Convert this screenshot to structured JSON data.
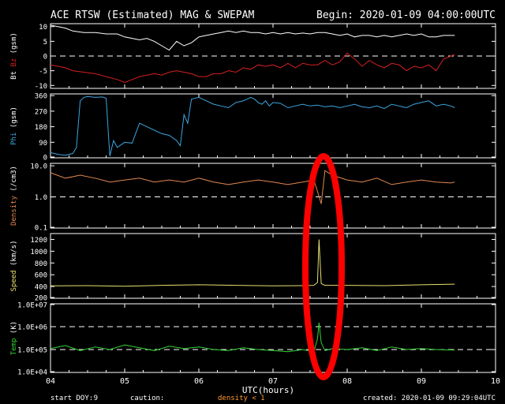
{
  "header": {
    "title": "ACE RTSW (Estimated) MAG & SWEPAM",
    "begin": "Begin: 2020-01-09 04:00:00UTC"
  },
  "footer": {
    "start_doy_label": "start DOY:",
    "start_doy_value": "9",
    "caution_label": "caution:",
    "caution_value": "density < 1",
    "created": "created: 2020-01-09 09:29:04UTC"
  },
  "colors": {
    "background": "#000000",
    "frame": "#ffffff",
    "bt": "#ffffff",
    "bz": "#d42020",
    "phi": "#3aa6e0",
    "density": "#e08850",
    "speed": "#e6e070",
    "temp": "#33d433",
    "temp_spike": "#b0ff80",
    "highlight": "#ff0000",
    "caution_text": "#ff9933"
  },
  "chart_data": [
    {
      "type": "line",
      "panel": "mag",
      "ylabel_parts": [
        {
          "text": "Bt",
          "color": "#ffffff"
        },
        {
          "text": "Bz",
          "color": "#d42020"
        },
        {
          "text": "(gsm)",
          "color": "#ffffff"
        }
      ],
      "ylim": [
        -11,
        11
      ],
      "yticks": [
        10,
        5,
        0,
        -5,
        -10
      ],
      "ytick_labels": [
        "10",
        "5",
        "0",
        "-5",
        "-10"
      ],
      "dashed_refs": [
        0
      ],
      "x_range": [
        4,
        9.45
      ],
      "series": [
        {
          "name": "Bt",
          "color": "#ffffff",
          "x": [
            4.0,
            4.1,
            4.2,
            4.3,
            4.45,
            4.6,
            4.75,
            4.9,
            5.0,
            5.1,
            5.2,
            5.3,
            5.4,
            5.5,
            5.6,
            5.7,
            5.8,
            5.9,
            6.0,
            6.1,
            6.2,
            6.3,
            6.4,
            6.5,
            6.6,
            6.7,
            6.8,
            6.9,
            7.0,
            7.1,
            7.2,
            7.3,
            7.4,
            7.5,
            7.6,
            7.7,
            7.8,
            7.9,
            8.0,
            8.1,
            8.2,
            8.3,
            8.4,
            8.5,
            8.6,
            8.7,
            8.8,
            8.9,
            9.0,
            9.1,
            9.2,
            9.3,
            9.4,
            9.45
          ],
          "values": [
            10.5,
            10,
            9.5,
            8.5,
            8,
            8,
            7.5,
            7.5,
            6.5,
            6,
            5.5,
            6,
            5,
            3.5,
            2,
            5,
            3.5,
            4.5,
            6.5,
            7,
            7.5,
            8,
            8.5,
            8,
            8.5,
            8,
            8,
            7.5,
            8,
            7.5,
            8,
            7.5,
            7.8,
            7.5,
            8,
            8,
            7.5,
            7,
            7.5,
            6.5,
            7,
            7,
            6.5,
            7,
            6.5,
            7,
            7.5,
            7,
            7.5,
            6.5,
            6.5,
            7,
            7,
            7
          ]
        },
        {
          "name": "Bz",
          "color": "#d42020",
          "x": [
            4.0,
            4.1,
            4.2,
            4.3,
            4.45,
            4.6,
            4.75,
            4.9,
            5.0,
            5.1,
            5.2,
            5.3,
            5.4,
            5.5,
            5.6,
            5.7,
            5.8,
            5.9,
            6.0,
            6.1,
            6.2,
            6.3,
            6.4,
            6.5,
            6.6,
            6.7,
            6.8,
            6.9,
            7.0,
            7.1,
            7.2,
            7.3,
            7.4,
            7.5,
            7.6,
            7.7,
            7.8,
            7.9,
            8.0,
            8.1,
            8.2,
            8.3,
            8.4,
            8.5,
            8.6,
            8.7,
            8.8,
            8.9,
            9.0,
            9.1,
            9.2,
            9.3,
            9.4,
            9.45
          ],
          "values": [
            -3,
            -3.5,
            -4,
            -5,
            -5.5,
            -6,
            -7,
            -8,
            -9,
            -8,
            -7,
            -6.5,
            -6,
            -6.5,
            -5.5,
            -5,
            -5.5,
            -6,
            -7,
            -7,
            -6,
            -6,
            -5,
            -5.5,
            -4,
            -4.5,
            -3,
            -3.5,
            -3,
            -4,
            -2.5,
            -4,
            -2.5,
            -3,
            -3,
            -1.5,
            -3,
            -2,
            1,
            -1,
            -3.5,
            -1.5,
            -3,
            -4,
            -2.5,
            -3,
            -5,
            -3.5,
            -4,
            -3,
            -5,
            -1,
            0,
            0.5
          ]
        }
      ]
    },
    {
      "type": "line",
      "panel": "phi",
      "ylabel_parts": [
        {
          "text": "Phi",
          "color": "#3aa6e0"
        },
        {
          "text": "(gsm)",
          "color": "#ffffff"
        }
      ],
      "ylim": [
        0,
        370
      ],
      "yticks": [
        360,
        270,
        180,
        90,
        0
      ],
      "ytick_labels": [
        "360",
        "270",
        "180",
        "90",
        "0"
      ],
      "x_range": [
        4,
        9.45
      ],
      "series": [
        {
          "name": "Phi",
          "color": "#3aa6e0",
          "x": [
            4.0,
            4.1,
            4.2,
            4.3,
            4.35,
            4.4,
            4.45,
            4.5,
            4.6,
            4.7,
            4.75,
            4.8,
            4.85,
            4.9,
            5.0,
            5.1,
            5.2,
            5.3,
            5.4,
            5.5,
            5.6,
            5.7,
            5.75,
            5.8,
            5.85,
            5.9,
            6.0,
            6.1,
            6.2,
            6.3,
            6.4,
            6.5,
            6.6,
            6.7,
            6.75,
            6.8,
            6.85,
            6.9,
            6.95,
            7.0,
            7.1,
            7.2,
            7.3,
            7.4,
            7.5,
            7.6,
            7.7,
            7.8,
            7.9,
            8.0,
            8.1,
            8.2,
            8.3,
            8.4,
            8.5,
            8.6,
            8.7,
            8.8,
            8.9,
            9.0,
            9.1,
            9.2,
            9.3,
            9.4,
            9.45
          ],
          "values": [
            30,
            20,
            15,
            25,
            60,
            330,
            350,
            355,
            350,
            352,
            345,
            10,
            100,
            60,
            90,
            85,
            200,
            180,
            160,
            140,
            130,
            100,
            70,
            250,
            200,
            340,
            350,
            330,
            310,
            300,
            290,
            320,
            330,
            350,
            340,
            320,
            310,
            330,
            300,
            320,
            315,
            290,
            300,
            310,
            300,
            305,
            295,
            300,
            290,
            300,
            310,
            295,
            290,
            300,
            285,
            310,
            300,
            290,
            310,
            320,
            330,
            300,
            310,
            300,
            290
          ]
        }
      ]
    },
    {
      "type": "line",
      "panel": "density",
      "ylabel_parts": [
        {
          "text": "Density",
          "color": "#e08850"
        },
        {
          "text": "(/cm3)",
          "color": "#ffffff"
        }
      ],
      "yscale": "log",
      "ylim": [
        0.1,
        12
      ],
      "yticks": [
        10.0,
        1.0,
        0.1
      ],
      "ytick_labels": [
        "10.0",
        "1.0",
        "0.1"
      ],
      "dashed_refs": [
        1.0
      ],
      "x_range": [
        4,
        9.45
      ],
      "series": [
        {
          "name": "Density",
          "color": "#e08850",
          "x": [
            4.0,
            4.2,
            4.4,
            4.6,
            4.8,
            5.0,
            5.2,
            5.4,
            5.6,
            5.8,
            6.0,
            6.2,
            6.4,
            6.6,
            6.8,
            7.0,
            7.2,
            7.4,
            7.55,
            7.6,
            7.65,
            7.7,
            7.8,
            8.0,
            8.2,
            8.4,
            8.6,
            8.8,
            9.0,
            9.2,
            9.4,
            9.45
          ],
          "values": [
            6,
            4,
            5,
            4,
            3,
            3.5,
            4,
            3,
            3.5,
            3,
            4,
            3,
            2.5,
            3,
            3.5,
            3,
            2.5,
            3,
            3.5,
            1.5,
            0.6,
            7,
            5,
            3.5,
            3,
            4,
            2.5,
            3,
            3.5,
            3,
            2.8,
            3
          ]
        }
      ]
    },
    {
      "type": "line",
      "panel": "speed",
      "ylabel_parts": [
        {
          "text": "Speed",
          "color": "#e6e070"
        },
        {
          "text": "(km/s)",
          "color": "#ffffff"
        }
      ],
      "ylim": [
        200,
        1300
      ],
      "yticks": [
        1200,
        1000,
        800,
        600,
        400,
        200
      ],
      "ytick_labels": [
        "1200",
        "1000",
        "800",
        "600",
        "400",
        "200"
      ],
      "x_range": [
        4,
        9.45
      ],
      "series": [
        {
          "name": "Speed",
          "color": "#e6e070",
          "x": [
            4.0,
            4.5,
            5.0,
            5.5,
            6.0,
            6.5,
            7.0,
            7.4,
            7.55,
            7.6,
            7.62,
            7.65,
            7.7,
            8.0,
            8.5,
            9.0,
            9.45
          ],
          "values": [
            410,
            415,
            405,
            420,
            430,
            420,
            410,
            415,
            420,
            470,
            1200,
            450,
            420,
            420,
            415,
            430,
            440
          ]
        }
      ]
    },
    {
      "type": "line",
      "panel": "temp",
      "ylabel_parts": [
        {
          "text": "Temp",
          "color": "#33d433"
        },
        {
          "text": "(K)",
          "color": "#ffffff"
        }
      ],
      "yscale": "log",
      "ylim": [
        10000,
        10000000
      ],
      "yticks": [
        10000000,
        1000000,
        100000,
        10000
      ],
      "ytick_labels": [
        "1.0E+07",
        "1.0E+06",
        "1.0E+05",
        "1.0E+04"
      ],
      "dashed_refs": [
        1000000,
        100000
      ],
      "x_range": [
        4,
        9.45
      ],
      "series": [
        {
          "name": "Temp",
          "color": "#33d433",
          "x": [
            4.0,
            4.2,
            4.4,
            4.6,
            4.8,
            5.0,
            5.2,
            5.4,
            5.6,
            5.8,
            6.0,
            6.2,
            6.4,
            6.6,
            6.8,
            7.0,
            7.2,
            7.4,
            7.55,
            7.6,
            7.62,
            7.65,
            7.7,
            7.8,
            8.0,
            8.2,
            8.4,
            8.6,
            8.8,
            9.0,
            9.2,
            9.45
          ],
          "values": [
            110000,
            150000,
            90000,
            130000,
            100000,
            160000,
            120000,
            90000,
            140000,
            110000,
            130000,
            100000,
            90000,
            120000,
            100000,
            90000,
            80000,
            100000,
            80000,
            300000,
            1500000,
            200000,
            90000,
            110000,
            100000,
            120000,
            90000,
            130000,
            100000,
            110000,
            100000,
            95000
          ]
        }
      ]
    }
  ],
  "x_axis": {
    "ticks": [
      4,
      5,
      6,
      7,
      8,
      9,
      10
    ],
    "tick_labels": [
      "04",
      "05",
      "06",
      "07",
      "08",
      "09",
      "10"
    ],
    "xlim": [
      4,
      10
    ],
    "xlabel": "UTC(hours)"
  }
}
